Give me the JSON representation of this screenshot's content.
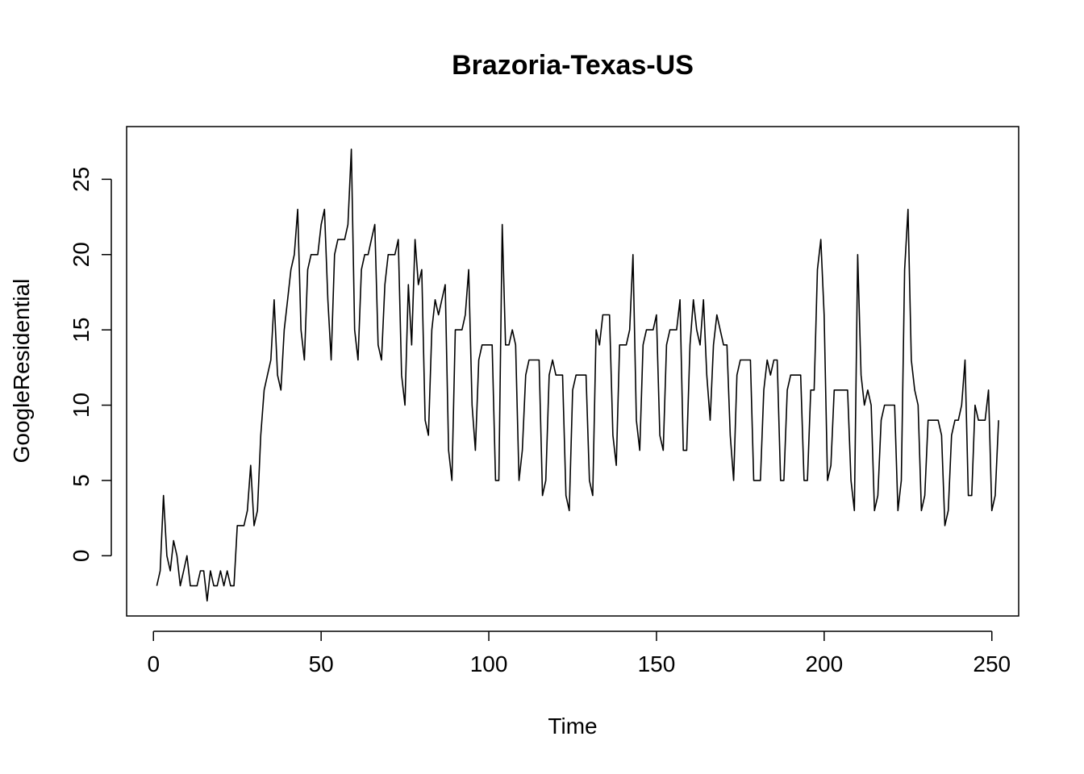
{
  "chart_data": {
    "type": "line",
    "title": "Brazoria-Texas-US",
    "xlabel": "Time",
    "ylabel": "GoogleResidential",
    "xlim": [
      -8,
      258
    ],
    "ylim": [
      -4,
      28.5
    ],
    "xticks": [
      0,
      50,
      100,
      150,
      200,
      250
    ],
    "yticks": [
      0,
      5,
      10,
      15,
      20,
      25
    ],
    "series": [
      {
        "name": "GoogleResidential",
        "x_start": 1,
        "values": [
          -2,
          -1,
          4,
          0,
          -1,
          1,
          0,
          -2,
          -1,
          0,
          -2,
          -2,
          -2,
          -1,
          -1,
          -3,
          -1,
          -2,
          -2,
          -1,
          -2,
          -1,
          -2,
          -2,
          2,
          2,
          2,
          3,
          6,
          2,
          3,
          8,
          11,
          12,
          13,
          17,
          12,
          11,
          15,
          17,
          19,
          20,
          23,
          15,
          13,
          19,
          20,
          20,
          20,
          22,
          23,
          17,
          13,
          20,
          21,
          21,
          21,
          22,
          27,
          15,
          13,
          19,
          20,
          20,
          21,
          22,
          14,
          13,
          18,
          20,
          20,
          20,
          21,
          12,
          10,
          18,
          14,
          21,
          18,
          19,
          9,
          8,
          15,
          17,
          16,
          17,
          18,
          7,
          5,
          15,
          15,
          15,
          16,
          19,
          10,
          7,
          13,
          14,
          14,
          14,
          14,
          5,
          5,
          22,
          14,
          14,
          15,
          14,
          5,
          7,
          12,
          13,
          13,
          13,
          13,
          4,
          5,
          12,
          13,
          12,
          12,
          12,
          4,
          3,
          11,
          12,
          12,
          12,
          12,
          5,
          4,
          15,
          14,
          16,
          16,
          16,
          8,
          6,
          14,
          14,
          14,
          15,
          20,
          9,
          7,
          14,
          15,
          15,
          15,
          16,
          8,
          7,
          14,
          15,
          15,
          15,
          17,
          7,
          7,
          14,
          17,
          15,
          14,
          17,
          12,
          9,
          14,
          16,
          15,
          14,
          14,
          8,
          5,
          12,
          13,
          13,
          13,
          13,
          5,
          5,
          5,
          11,
          13,
          12,
          13,
          13,
          5,
          5,
          11,
          12,
          12,
          12,
          12,
          5,
          5,
          11,
          11,
          19,
          21,
          16,
          5,
          6,
          11,
          11,
          11,
          11,
          11,
          5,
          3,
          20,
          12,
          10,
          11,
          10,
          3,
          4,
          9,
          10,
          10,
          10,
          10,
          3,
          5,
          19,
          23,
          13,
          11,
          10,
          3,
          4,
          9,
          9,
          9,
          9,
          8,
          2,
          3,
          8,
          9,
          9,
          10,
          13,
          4,
          4,
          10,
          9,
          9,
          9,
          11,
          3,
          4,
          9
        ]
      }
    ]
  }
}
